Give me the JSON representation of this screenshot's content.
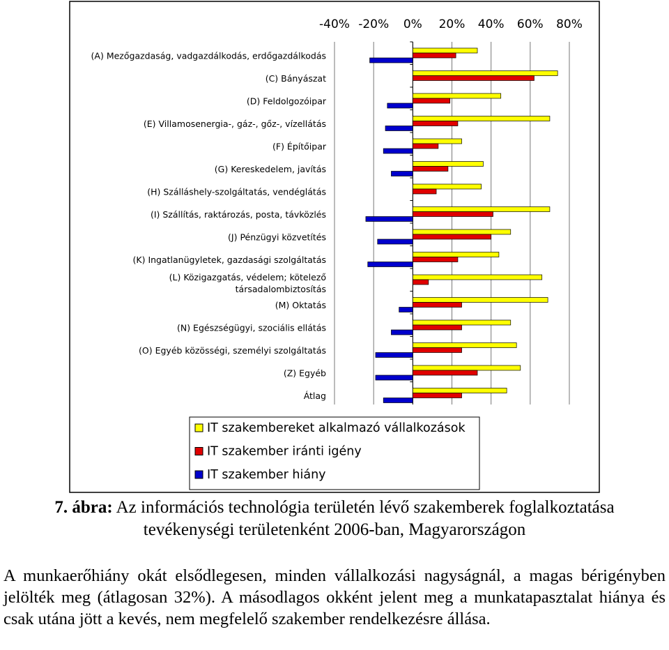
{
  "chart_data": {
    "type": "hbar",
    "categories": [
      "(A) Mezőgazdaság, vadgazdálkodás, erdőgazdálkodás",
      "(C) Bányászat",
      "(D) Feldolgozóipar",
      "(E) Villamosenergia-, gáz-, gőz-, vízellátás",
      "(F) Építőipar",
      "(G) Kereskedelem, javítás",
      "(H) Szálláshely-szolgáltatás, vendéglátás",
      "(I) Szállítás, raktározás, posta, távközlés",
      "(J) Pénzügyi közvetítés",
      "(K) Ingatlanügyletek, gazdasági szolgáltatás",
      "(L) Közigazgatás, védelem; kötelező\ntársadalombiztosítás",
      "(M) Oktatás",
      "(N) Egészségügyi, szociális ellátás",
      "(O) Egyéb közösségi, személyi szolgáltatás",
      "(Z) Egyéb",
      "Átlag"
    ],
    "series": [
      {
        "name": "IT szakembereket alkalmazó vállalkozások",
        "color": "#ffff00",
        "values": [
          33,
          74,
          45,
          70,
          25,
          36,
          35,
          70,
          50,
          44,
          66,
          69,
          50,
          53,
          55,
          48
        ]
      },
      {
        "name": "IT szakember iránti igény",
        "color": "#e00000",
        "values": [
          22,
          62,
          19,
          23,
          13,
          18,
          12,
          41,
          40,
          23,
          8,
          25,
          25,
          25,
          33,
          25
        ]
      },
      {
        "name": "IT szakember hiány",
        "color": "#0000cc",
        "values": [
          -22,
          0,
          -13,
          -14,
          -15,
          -11,
          0,
          -24,
          -18,
          -23,
          0,
          -7,
          -11,
          -19,
          -19,
          -15
        ]
      }
    ],
    "xlim": [
      -40,
      80
    ],
    "xticks": [
      {
        "value": -40,
        "label": "-40%"
      },
      {
        "value": -20,
        "label": "-20%"
      },
      {
        "value": 0,
        "label": "0%"
      },
      {
        "value": 20,
        "label": "20%"
      },
      {
        "value": 40,
        "label": "40%"
      },
      {
        "value": 60,
        "label": "60%"
      },
      {
        "value": 80,
        "label": "80%"
      }
    ],
    "grid": true
  },
  "caption": {
    "label": "7. ábra:",
    "text": "Az információs technológia területén lévő szakemberek foglalkoztatása tevékenységi területenként 2006-ban, Magyarországon"
  },
  "paragraph": "A munkaerőhiány okát elsődlegesen, minden vállalkozási nagyságnál, a magas bérigényben jelölték meg (átlagosan 32%). A másodlagos okként jelent meg a munkatapasztalat hiánya és csak utána jött a kevés, nem megfelelő szakember rendelkezésre állása."
}
